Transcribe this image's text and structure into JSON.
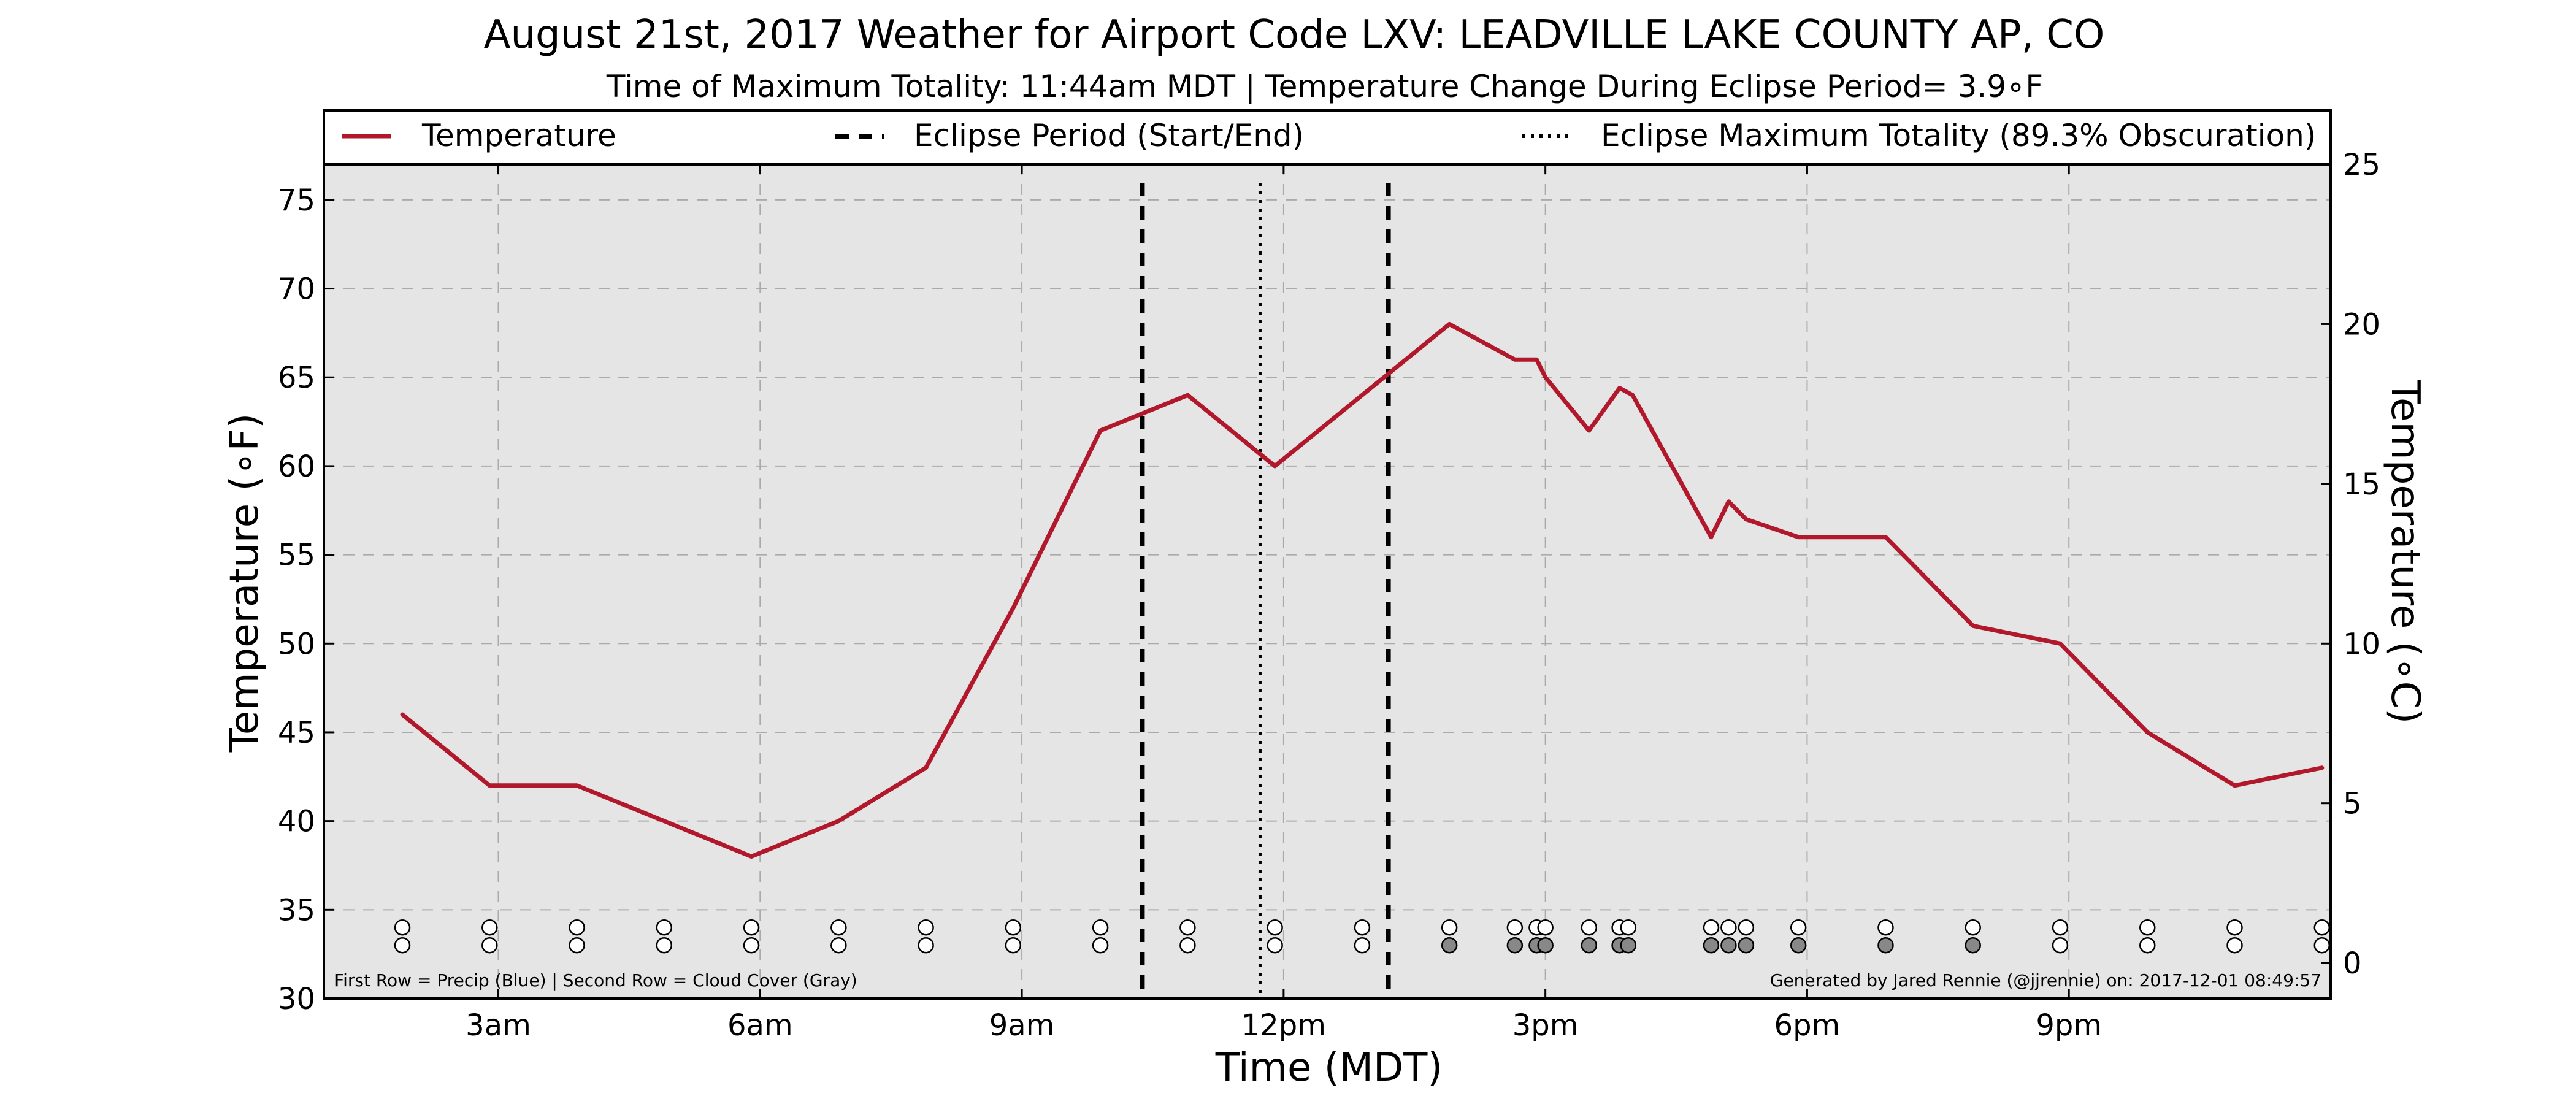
{
  "chart_data": {
    "type": "line",
    "title": "August 21st, 2017 Weather for Airport Code LXV: LEADVILLE LAKE COUNTY AP, CO",
    "subtitle": "Time of Maximum Totality: 11:44am MDT | Temperature Change During Eclipse Period= 3.9∘F",
    "xlabel": "Time (MDT)",
    "ylabel": "Temperature (∘F)",
    "ylabel_right": "Temperature (∘C)",
    "xlim": [
      1.0,
      24.0
    ],
    "ylim": [
      30,
      77
    ],
    "ylim_right_c": [
      -1.11,
      25.0
    ],
    "x_ticks": [
      {
        "x": 3,
        "label": "3am"
      },
      {
        "x": 6,
        "label": "6am"
      },
      {
        "x": 9,
        "label": "9am"
      },
      {
        "x": 12,
        "label": "12pm"
      },
      {
        "x": 15,
        "label": "3pm"
      },
      {
        "x": 18,
        "label": "6pm"
      },
      {
        "x": 21,
        "label": "9pm"
      }
    ],
    "y_ticks": [
      30,
      35,
      40,
      45,
      50,
      55,
      60,
      65,
      70,
      75
    ],
    "y_ticks_right": [
      0,
      5,
      10,
      15,
      20,
      25
    ],
    "grid": true,
    "legend": {
      "placement": "top",
      "entries": [
        {
          "label": "Temperature",
          "style": "solid",
          "color": "#b2182b"
        },
        {
          "label": "Eclipse Period (Start/End)",
          "style": "dashed",
          "color": "#000000"
        },
        {
          "label": "Eclipse Maximum Totality (89.3% Obscuration)",
          "style": "dotted",
          "color": "#000000"
        }
      ]
    },
    "series": [
      {
        "name": "Temperature",
        "color": "#b2182b",
        "points": [
          [
            1.9,
            46
          ],
          [
            2.9,
            42
          ],
          [
            3.9,
            42
          ],
          [
            4.9,
            40
          ],
          [
            5.9,
            38
          ],
          [
            6.9,
            40
          ],
          [
            7.9,
            43
          ],
          [
            8.9,
            52
          ],
          [
            9.9,
            62
          ],
          [
            10.9,
            64
          ],
          [
            11.9,
            60
          ],
          [
            12.9,
            64
          ],
          [
            13.9,
            68
          ],
          [
            14.65,
            66
          ],
          [
            14.9,
            66
          ],
          [
            15.0,
            65
          ],
          [
            15.5,
            62
          ],
          [
            15.85,
            64.4
          ],
          [
            16.0,
            64
          ],
          [
            16.9,
            56
          ],
          [
            17.1,
            58
          ],
          [
            17.3,
            57
          ],
          [
            17.9,
            56
          ],
          [
            18.9,
            56
          ],
          [
            19.9,
            51
          ],
          [
            20.9,
            50
          ],
          [
            21.9,
            45
          ],
          [
            22.9,
            42
          ],
          [
            23.9,
            43
          ]
        ]
      }
    ],
    "eclipse_start": 10.38,
    "eclipse_max": 11.73,
    "eclipse_end": 13.2,
    "markers": {
      "precip_row": [
        1.9,
        2.9,
        3.9,
        4.9,
        5.9,
        6.9,
        7.9,
        8.9,
        9.9,
        10.9,
        11.9,
        12.9,
        13.9,
        14.65,
        14.9,
        15.0,
        15.5,
        15.85,
        15.95,
        16.9,
        17.1,
        17.3,
        17.9,
        18.9,
        19.9,
        20.9,
        21.9,
        22.9,
        23.9
      ],
      "cloud_row": [
        {
          "x": 1.9,
          "cloudy": false
        },
        {
          "x": 2.9,
          "cloudy": false
        },
        {
          "x": 3.9,
          "cloudy": false
        },
        {
          "x": 4.9,
          "cloudy": false
        },
        {
          "x": 5.9,
          "cloudy": false
        },
        {
          "x": 6.9,
          "cloudy": false
        },
        {
          "x": 7.9,
          "cloudy": false
        },
        {
          "x": 8.9,
          "cloudy": false
        },
        {
          "x": 9.9,
          "cloudy": false
        },
        {
          "x": 10.9,
          "cloudy": false
        },
        {
          "x": 11.9,
          "cloudy": false
        },
        {
          "x": 12.9,
          "cloudy": false
        },
        {
          "x": 13.9,
          "cloudy": true
        },
        {
          "x": 14.65,
          "cloudy": true
        },
        {
          "x": 14.9,
          "cloudy": true
        },
        {
          "x": 15.0,
          "cloudy": true
        },
        {
          "x": 15.5,
          "cloudy": true
        },
        {
          "x": 15.85,
          "cloudy": true
        },
        {
          "x": 15.95,
          "cloudy": true
        },
        {
          "x": 16.9,
          "cloudy": true
        },
        {
          "x": 17.1,
          "cloudy": true
        },
        {
          "x": 17.3,
          "cloudy": true
        },
        {
          "x": 17.9,
          "cloudy": true
        },
        {
          "x": 18.9,
          "cloudy": true
        },
        {
          "x": 19.9,
          "cloudy": true
        },
        {
          "x": 20.9,
          "cloudy": false
        },
        {
          "x": 21.9,
          "cloudy": false
        },
        {
          "x": 22.9,
          "cloudy": false
        },
        {
          "x": 23.9,
          "cloudy": false
        }
      ],
      "precip_row_y": 34,
      "cloud_row_y": 33
    },
    "annotations": {
      "bottom_left": "First Row = Precip (Blue) | Second Row = Cloud Cover (Gray)",
      "bottom_right": "Generated by Jared Rennie (@jjrennie) on: 2017-12-01 08:49:57"
    },
    "colors": {
      "plot_background": "#e5e5e5",
      "grid": "#aaaaaa",
      "temperature": "#b2182b",
      "cloud_fill": "#888888"
    }
  }
}
